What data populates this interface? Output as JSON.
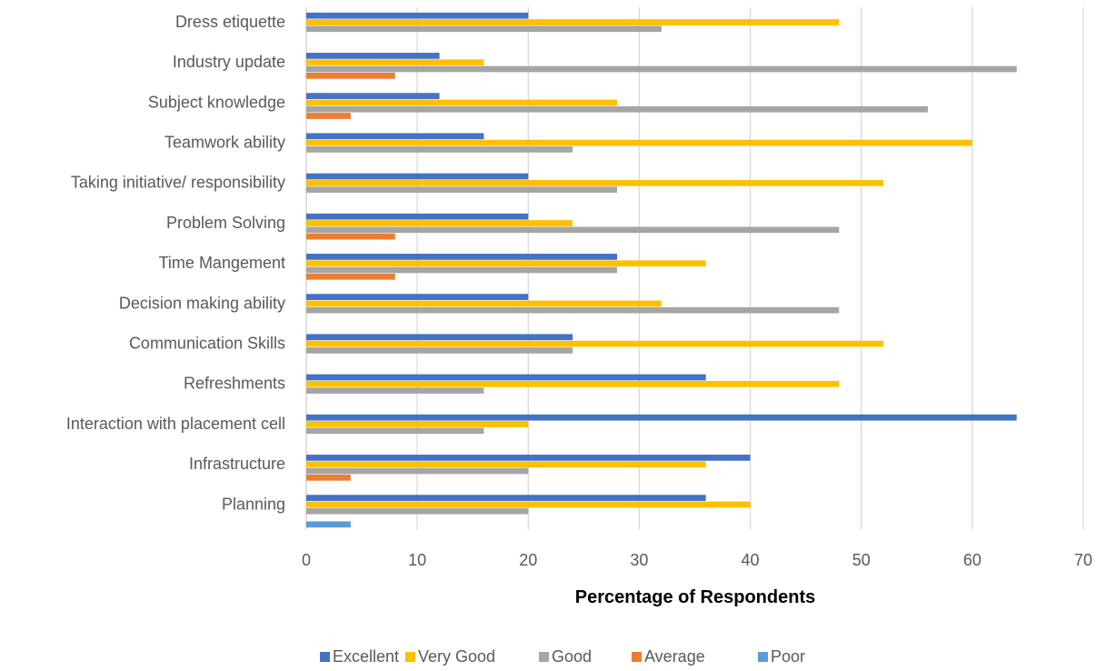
{
  "chart_data": {
    "type": "bar",
    "orientation": "horizontal",
    "categories": [
      "Dress etiquette",
      "Industry update",
      "Subject knowledge",
      "Teamwork ability",
      "Taking initiative/ responsibility",
      "Problem Solving",
      "Time Mangement",
      "Decision making ability",
      "Communication Skills",
      "Refreshments",
      "Interaction with placement cell",
      "Infrastructure",
      "Planning"
    ],
    "series": [
      {
        "name": "Excellent",
        "color": "#4472C4",
        "values": [
          20,
          12,
          12,
          16,
          20,
          20,
          28,
          20,
          24,
          36,
          64,
          40,
          36
        ]
      },
      {
        "name": "Very Good",
        "color": "#FFC000",
        "values": [
          48,
          16,
          28,
          60,
          52,
          24,
          36,
          32,
          52,
          48,
          20,
          36,
          40
        ]
      },
      {
        "name": "Good",
        "color": "#A5A5A5",
        "values": [
          32,
          64,
          56,
          24,
          28,
          48,
          28,
          48,
          24,
          16,
          16,
          20,
          20
        ]
      },
      {
        "name": "Average",
        "color": "#ED7D31",
        "values": [
          0,
          8,
          4,
          0,
          0,
          8,
          8,
          0,
          0,
          0,
          0,
          4,
          0
        ]
      },
      {
        "name": "Poor",
        "color": "#5B9BD5",
        "values": [
          0,
          0,
          0,
          0,
          0,
          0,
          0,
          0,
          0,
          0,
          0,
          0,
          4
        ]
      }
    ],
    "xlim": [
      0,
      70
    ],
    "xticks": [
      0,
      10,
      20,
      30,
      40,
      50,
      60,
      70
    ],
    "xlabel": "Percentage of Respondents",
    "ylabel": "",
    "grid": "vertical",
    "legend": "bottom"
  }
}
